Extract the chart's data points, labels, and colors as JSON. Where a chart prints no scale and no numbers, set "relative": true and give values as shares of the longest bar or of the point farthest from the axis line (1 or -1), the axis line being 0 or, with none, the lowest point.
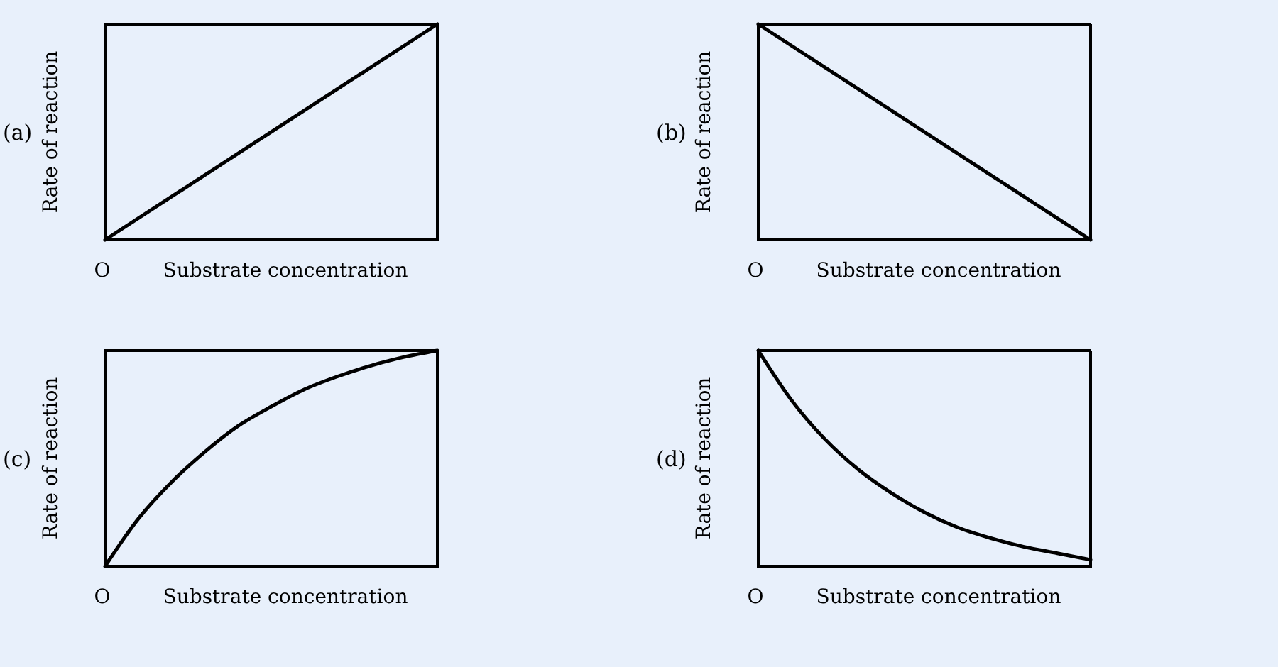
{
  "chart_data": [
    {
      "type": "line",
      "title": "(a)",
      "xlabel": "Substrate concentration",
      "ylabel": "Rate of reaction",
      "annotations": [
        "O"
      ],
      "relative": true,
      "categories": [
        null,
        null
      ],
      "values": [
        0,
        1
      ],
      "color": "#000000"
    },
    {
      "type": "line",
      "title": "(b)",
      "xlabel": "Substrate concentration",
      "ylabel": "Rate of reaction",
      "annotations": [
        "O"
      ],
      "relative": true,
      "categories": [
        null,
        null
      ],
      "values": [
        1,
        0
      ],
      "color": "#000000"
    },
    {
      "type": "line",
      "title": "(c)",
      "xlabel": "Substrate concentration",
      "ylabel": "Rate of reaction",
      "annotations": [
        "O"
      ],
      "relative": true,
      "categories": [
        null,
        null,
        null,
        null,
        null,
        null,
        null,
        null,
        null,
        null,
        null
      ],
      "values": [
        0,
        0.22,
        0.39,
        0.53,
        0.65,
        0.74,
        0.82,
        0.88,
        0.93,
        0.97,
        1
      ],
      "color": "#000000"
    },
    {
      "type": "line",
      "title": "(d)",
      "xlabel": "Substrate concentration",
      "ylabel": "Rate of reaction",
      "annotations": [
        "O"
      ],
      "relative": true,
      "categories": [
        null,
        null,
        null,
        null,
        null,
        null,
        null,
        null,
        null,
        null,
        null
      ],
      "values": [
        1,
        0.77,
        0.59,
        0.45,
        0.34,
        0.25,
        0.18,
        0.13,
        0.09,
        0.06,
        0.03
      ],
      "color": "#000000"
    }
  ]
}
